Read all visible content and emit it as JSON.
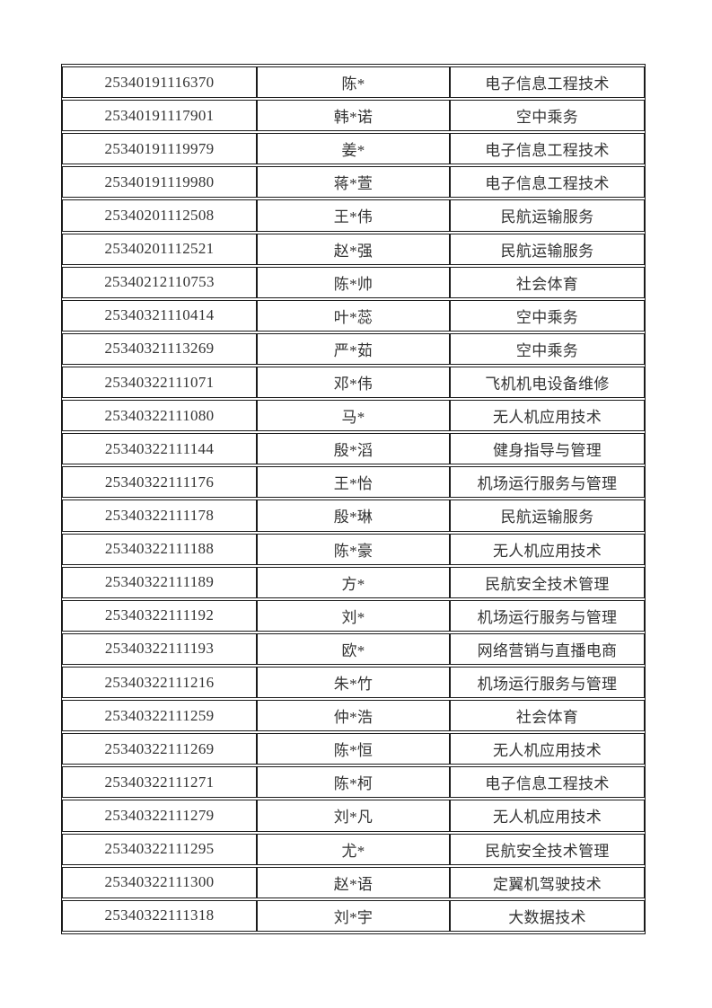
{
  "page": {
    "background": "#ffffff"
  },
  "table": {
    "border_color": "#1b1b1b",
    "text_color": "#333333",
    "rows": [
      [
        "25340191116370",
        "陈*",
        "电子信息工程技术"
      ],
      [
        "25340191117901",
        "韩*诺",
        "空中乘务"
      ],
      [
        "25340191119979",
        "姜*",
        "电子信息工程技术"
      ],
      [
        "25340191119980",
        "蒋*萱",
        "电子信息工程技术"
      ],
      [
        "25340201112508",
        "王*伟",
        "民航运输服务"
      ],
      [
        "25340201112521",
        "赵*强",
        "民航运输服务"
      ],
      [
        "25340212110753",
        "陈*帅",
        "社会体育"
      ],
      [
        "25340321110414",
        "叶*蕊",
        "空中乘务"
      ],
      [
        "25340321113269",
        "严*茹",
        "空中乘务"
      ],
      [
        "25340322111071",
        "邓*伟",
        "飞机机电设备维修"
      ],
      [
        "25340322111080",
        "马*",
        "无人机应用技术"
      ],
      [
        "25340322111144",
        "殷*滔",
        "健身指导与管理"
      ],
      [
        "25340322111176",
        "王*怡",
        "机场运行服务与管理"
      ],
      [
        "25340322111178",
        "殷*琳",
        "民航运输服务"
      ],
      [
        "25340322111188",
        "陈*豪",
        "无人机应用技术"
      ],
      [
        "25340322111189",
        "方*",
        "民航安全技术管理"
      ],
      [
        "25340322111192",
        "刘*",
        "机场运行服务与管理"
      ],
      [
        "25340322111193",
        "欧*",
        "网络营销与直播电商"
      ],
      [
        "25340322111216",
        "朱*竹",
        "机场运行服务与管理"
      ],
      [
        "25340322111259",
        "仲*浩",
        "社会体育"
      ],
      [
        "25340322111269",
        "陈*恒",
        "无人机应用技术"
      ],
      [
        "25340322111271",
        "陈*柯",
        "电子信息工程技术"
      ],
      [
        "25340322111279",
        "刘*凡",
        "无人机应用技术"
      ],
      [
        "25340322111295",
        "尤*",
        "民航安全技术管理"
      ],
      [
        "25340322111300",
        "赵*语",
        "定翼机驾驶技术"
      ],
      [
        "25340322111318",
        "刘*宇",
        "大数据技术"
      ]
    ]
  }
}
